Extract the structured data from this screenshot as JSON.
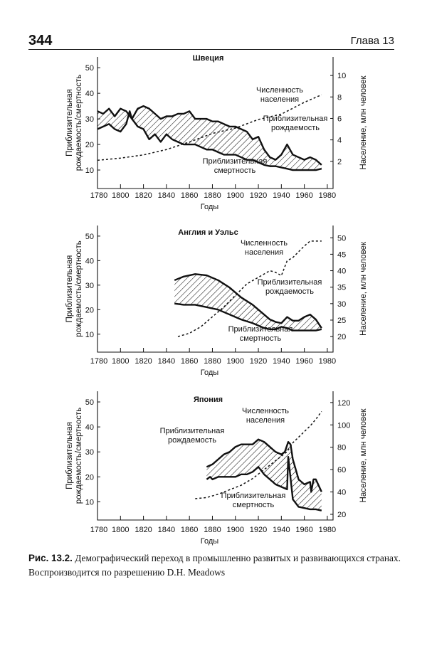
{
  "header": {
    "page_number": "344",
    "chapter": "Глава 13"
  },
  "caption": {
    "label": "Рис. 13.2.",
    "text": "Демографический переход в промышленно развитых и развивающихся странах. Воспроизводится по разрешению D.H. Meadows"
  },
  "chart_data": [
    {
      "type": "line",
      "title": "Швеция",
      "xlabel": "Годы",
      "ylabel": "Приблизительная рождаемость/смертность",
      "y2label": "Население, млн человек",
      "xlim": [
        1780,
        1985
      ],
      "ylim": [
        5,
        52
      ],
      "y2lim": [
        0,
        11.2
      ],
      "xticks": [
        1800,
        1820,
        1840,
        1860,
        1880,
        1900,
        1920,
        1940,
        1960,
        1980
      ],
      "x_extra_label": "1780",
      "yticks": [
        10,
        20,
        30,
        40,
        50
      ],
      "y2ticks": [
        2,
        4,
        6,
        8,
        10
      ],
      "series": [
        {
          "name": "Приблизительная рождаемость",
          "x": [
            1780,
            1785,
            1790,
            1795,
            1800,
            1805,
            1810,
            1815,
            1820,
            1825,
            1830,
            1835,
            1840,
            1845,
            1850,
            1855,
            1860,
            1865,
            1870,
            1875,
            1880,
            1885,
            1890,
            1895,
            1900,
            1905,
            1910,
            1915,
            1920,
            1925,
            1930,
            1935,
            1940,
            1945,
            1950,
            1955,
            1960,
            1965,
            1970,
            1975
          ],
          "values": [
            33,
            32,
            34,
            31,
            34,
            33,
            30,
            34,
            35,
            34,
            32,
            30,
            31,
            31,
            32,
            32,
            33,
            30,
            30,
            30,
            29,
            29,
            28,
            27,
            27,
            26,
            25,
            22,
            23,
            18,
            15,
            14,
            16,
            20,
            16,
            15,
            14,
            15,
            14,
            12
          ]
        },
        {
          "name": "Приблизительная смертность",
          "x": [
            1780,
            1785,
            1790,
            1795,
            1800,
            1805,
            1808,
            1810,
            1815,
            1820,
            1825,
            1830,
            1835,
            1840,
            1845,
            1850,
            1855,
            1860,
            1865,
            1870,
            1875,
            1880,
            1885,
            1890,
            1895,
            1900,
            1905,
            1910,
            1915,
            1920,
            1925,
            1930,
            1935,
            1940,
            1945,
            1950,
            1955,
            1960,
            1965,
            1970,
            1975
          ],
          "values": [
            26,
            27,
            28,
            26,
            25,
            28,
            33,
            30,
            27,
            26,
            22,
            24,
            21,
            24,
            22,
            21,
            20,
            20,
            20,
            19,
            18,
            18,
            17,
            16,
            16,
            16,
            15,
            14,
            14,
            13,
            12,
            11.5,
            11.5,
            11,
            10.5,
            10,
            10,
            10,
            10,
            10,
            10.5
          ]
        },
        {
          "name": "Численность населения",
          "axis": "right",
          "x": [
            1780,
            1800,
            1820,
            1840,
            1860,
            1880,
            1900,
            1920,
            1940,
            1960,
            1975
          ],
          "values": [
            2.1,
            2.3,
            2.6,
            3.1,
            3.8,
            4.6,
            5.1,
            5.9,
            6.4,
            7.5,
            8.2
          ]
        }
      ],
      "annotations": {
        "population": [
          "Численность",
          "населения"
        ],
        "birth": [
          "Приблизительная",
          "рождаемость"
        ],
        "death": [
          "Приблизительная",
          "смертность"
        ]
      }
    },
    {
      "type": "line",
      "title": "Англия и Уэльс",
      "xlabel": "Годы",
      "ylabel": "Приблизительная рождаемость/смертность",
      "y2label": "Население, млн человек",
      "xlim": [
        1780,
        1985
      ],
      "ylim": [
        5,
        52
      ],
      "y2lim": [
        17,
        52
      ],
      "xticks": [
        1800,
        1820,
        1840,
        1860,
        1880,
        1900,
        1920,
        1940,
        1960,
        1980
      ],
      "x_extra_label": "1780",
      "yticks": [
        10,
        20,
        30,
        40,
        50
      ],
      "y2ticks": [
        20,
        25,
        30,
        35,
        40,
        45,
        50
      ],
      "series": [
        {
          "name": "Приблизительная рождаемость",
          "x": [
            1847,
            1855,
            1865,
            1875,
            1885,
            1895,
            1905,
            1915,
            1925,
            1930,
            1935,
            1940,
            1945,
            1950,
            1955,
            1960,
            1965,
            1970,
            1975
          ],
          "values": [
            32,
            33.5,
            34.5,
            34,
            32,
            29,
            25,
            22,
            18,
            16,
            15,
            14.5,
            17,
            15.5,
            15.5,
            17,
            18,
            16,
            12.5
          ]
        },
        {
          "name": "Приблизительная смертность",
          "x": [
            1847,
            1855,
            1865,
            1875,
            1885,
            1895,
            1905,
            1915,
            1925,
            1930,
            1935,
            1940,
            1945,
            1950,
            1955,
            1960,
            1965,
            1970,
            1975
          ],
          "values": [
            22.5,
            22,
            22,
            21,
            20,
            18,
            16,
            14.5,
            12.5,
            12,
            12,
            13,
            12.5,
            11.5,
            11.5,
            11.5,
            11.5,
            11.5,
            12
          ]
        },
        {
          "name": "Численность населения",
          "axis": "right",
          "x": [
            1850,
            1860,
            1870,
            1880,
            1890,
            1900,
            1910,
            1920,
            1930,
            1935,
            1940,
            1945,
            1950,
            1960,
            1965,
            1975
          ],
          "values": [
            20,
            21,
            23,
            26,
            29,
            32.5,
            36,
            38,
            40,
            39.5,
            38.5,
            43,
            44,
            47.5,
            49,
            49
          ]
        }
      ],
      "annotations": {
        "population": [
          "Численность",
          "населения"
        ],
        "birth": [
          "Приблизительная",
          "рождаемость"
        ],
        "death": [
          "Приблизительная",
          "смертность"
        ]
      }
    },
    {
      "type": "line",
      "title": "Япония",
      "xlabel": "Годы",
      "ylabel": "Приблизительная рождаемость/смертность",
      "y2label": "Население, млн человек",
      "xlim": [
        1780,
        1985
      ],
      "ylim": [
        5,
        52
      ],
      "y2lim": [
        20,
        125
      ],
      "xticks": [
        1800,
        1820,
        1840,
        1860,
        1880,
        1900,
        1920,
        1940,
        1960,
        1980
      ],
      "x_extra_label": "1780",
      "yticks": [
        10,
        20,
        30,
        40,
        50
      ],
      "y2ticks": [
        20,
        40,
        60,
        80,
        100,
        120
      ],
      "series": [
        {
          "name": "Приблизительная рождаемость",
          "x": [
            1875,
            1880,
            1885,
            1890,
            1895,
            1900,
            1905,
            1910,
            1915,
            1920,
            1925,
            1930,
            1935,
            1940,
            1943,
            1946,
            1948,
            1950,
            1955,
            1960,
            1965,
            1966,
            1968,
            1970,
            1975
          ],
          "values": [
            24,
            25,
            27,
            29,
            30,
            32,
            33,
            33,
            33,
            35,
            34,
            32,
            30,
            29,
            30,
            34,
            33,
            27,
            19,
            17,
            18,
            14,
            19,
            19,
            14
          ]
        },
        {
          "name": "Приблизительная смертность",
          "x": [
            1875,
            1878,
            1880,
            1885,
            1890,
            1895,
            1900,
            1905,
            1910,
            1915,
            1920,
            1925,
            1930,
            1935,
            1940,
            1945,
            1946,
            1950,
            1955,
            1960,
            1965,
            1970,
            1975
          ],
          "values": [
            19,
            20,
            19,
            20,
            20,
            20,
            20,
            21,
            21,
            22,
            24,
            21,
            19,
            17,
            16,
            15,
            28,
            11,
            8,
            7.5,
            7,
            7,
            6.5
          ]
        },
        {
          "name": "Численность населения",
          "axis": "right",
          "x": [
            1865,
            1875,
            1885,
            1895,
            1905,
            1915,
            1925,
            1935,
            1940,
            1945,
            1950,
            1955,
            1960,
            1965,
            1970,
            1975
          ],
          "values": [
            34,
            35,
            38,
            42,
            46,
            52,
            60,
            68,
            72,
            76,
            84,
            89,
            94,
            99,
            105,
            112
          ]
        }
      ],
      "annotations": {
        "population": [
          "Численность",
          "населения"
        ],
        "birth": [
          "Приблизительная",
          "рождаемость"
        ],
        "death": [
          "Приблизительная",
          "смертность"
        ]
      }
    }
  ]
}
